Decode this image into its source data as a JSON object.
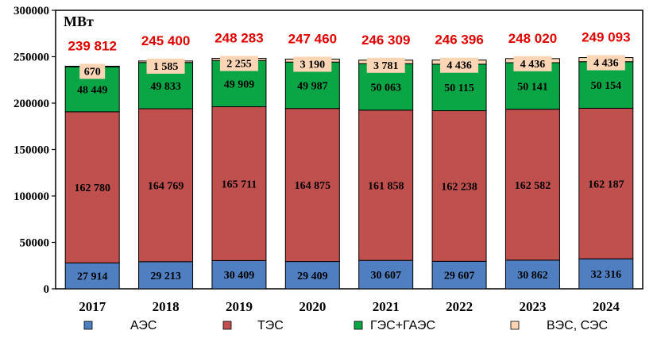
{
  "chart_data": {
    "type": "bar",
    "stacked": true,
    "unit_label": "МВт",
    "categories": [
      "2017",
      "2018",
      "2019",
      "2020",
      "2021",
      "2022",
      "2023",
      "2024"
    ],
    "series": [
      {
        "name": "АЭС",
        "color": "#4f7fc0",
        "values": [
          27914,
          29213,
          30409,
          29409,
          30607,
          29607,
          30862,
          32316
        ],
        "labels": [
          "27 914",
          "29 213",
          "30 409",
          "29 409",
          "30 607",
          "29 607",
          "30 862",
          "32 316"
        ]
      },
      {
        "name": "ТЭС",
        "color": "#c0504d",
        "values": [
          162780,
          164769,
          165711,
          164875,
          161858,
          162238,
          162582,
          162187
        ],
        "labels": [
          "162 780",
          "164 769",
          "165 711",
          "164 875",
          "161 858",
          "162 238",
          "162 582",
          "162 187"
        ]
      },
      {
        "name": "ГЭС+ГАЭС",
        "color": "#0aa646",
        "values": [
          48449,
          49833,
          49909,
          49987,
          50063,
          50115,
          50141,
          50154
        ],
        "labels": [
          "48 449",
          "49 833",
          "49 909",
          "49 987",
          "50 063",
          "50 115",
          "50 141",
          "50 154"
        ]
      },
      {
        "name": "ВЭС, СЭС",
        "color": "#fcd5b4",
        "values": [
          670,
          1585,
          2255,
          3190,
          3781,
          4436,
          4436,
          4436
        ],
        "labels": [
          "670",
          "1 585",
          "2 255",
          "3 190",
          "3 781",
          "4 436",
          "4 436",
          "4 436"
        ]
      }
    ],
    "totals": [
      "239 812",
      "245 400",
      "248 283",
      "247 460",
      "246 309",
      "246 396",
      "248 020",
      "249 093"
    ],
    "ylim": [
      0,
      300000
    ],
    "yticks": [
      "0",
      "50000",
      "100000",
      "150000",
      "200000",
      "250000",
      "300000"
    ],
    "grid": false,
    "legend_position": "bottom"
  }
}
